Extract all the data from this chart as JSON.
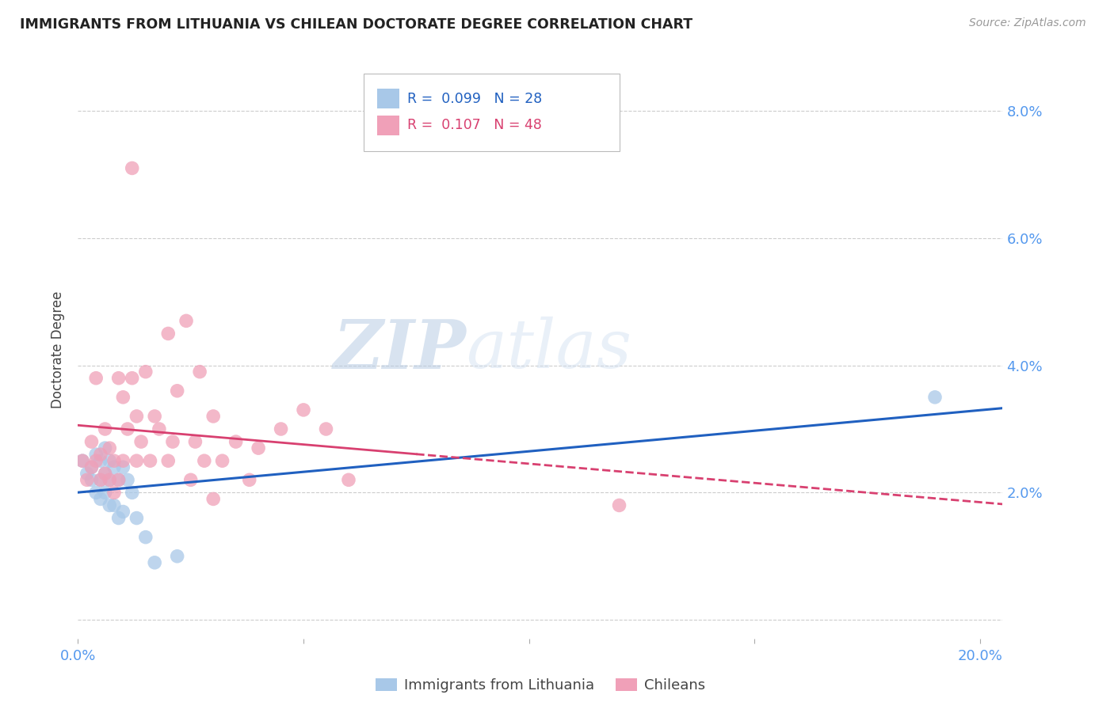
{
  "title": "IMMIGRANTS FROM LITHUANIA VS CHILEAN DOCTORATE DEGREE CORRELATION CHART",
  "source": "Source: ZipAtlas.com",
  "ylabel": "Doctorate Degree",
  "xlim": [
    0.0,
    0.205
  ],
  "ylim": [
    -0.003,
    0.088
  ],
  "x_ticks": [
    0.0,
    0.05,
    0.1,
    0.15,
    0.2
  ],
  "x_tick_labels": [
    "0.0%",
    "",
    "",
    "",
    "20.0%"
  ],
  "y_ticks": [
    0.0,
    0.02,
    0.04,
    0.06,
    0.08
  ],
  "y_tick_labels": [
    "",
    "2.0%",
    "4.0%",
    "6.0%",
    "8.0%"
  ],
  "blue_color": "#a8c8e8",
  "pink_color": "#f0a0b8",
  "blue_line_color": "#2060c0",
  "pink_line_color": "#d84070",
  "axis_label_color": "#5599ee",
  "watermark_zip": "ZIP",
  "watermark_atlas": "atlas",
  "blue_scatter_x": [
    0.001,
    0.002,
    0.003,
    0.003,
    0.004,
    0.004,
    0.005,
    0.005,
    0.005,
    0.006,
    0.006,
    0.006,
    0.007,
    0.007,
    0.007,
    0.008,
    0.008,
    0.009,
    0.009,
    0.01,
    0.01,
    0.011,
    0.012,
    0.013,
    0.015,
    0.017,
    0.022,
    0.19
  ],
  "blue_scatter_y": [
    0.025,
    0.023,
    0.024,
    0.022,
    0.026,
    0.02,
    0.025,
    0.022,
    0.019,
    0.027,
    0.023,
    0.02,
    0.025,
    0.022,
    0.018,
    0.024,
    0.018,
    0.022,
    0.016,
    0.024,
    0.017,
    0.022,
    0.02,
    0.016,
    0.013,
    0.009,
    0.01,
    0.035
  ],
  "pink_scatter_x": [
    0.001,
    0.002,
    0.003,
    0.003,
    0.004,
    0.004,
    0.005,
    0.005,
    0.006,
    0.006,
    0.007,
    0.007,
    0.008,
    0.008,
    0.009,
    0.009,
    0.01,
    0.01,
    0.011,
    0.012,
    0.013,
    0.013,
    0.014,
    0.015,
    0.016,
    0.017,
    0.018,
    0.02,
    0.021,
    0.022,
    0.024,
    0.025,
    0.026,
    0.027,
    0.028,
    0.03,
    0.032,
    0.035,
    0.038,
    0.04,
    0.045,
    0.05,
    0.055,
    0.06,
    0.012,
    0.02,
    0.03,
    0.12
  ],
  "pink_scatter_y": [
    0.025,
    0.022,
    0.028,
    0.024,
    0.025,
    0.038,
    0.026,
    0.022,
    0.03,
    0.023,
    0.027,
    0.022,
    0.025,
    0.02,
    0.022,
    0.038,
    0.025,
    0.035,
    0.03,
    0.038,
    0.032,
    0.025,
    0.028,
    0.039,
    0.025,
    0.032,
    0.03,
    0.025,
    0.028,
    0.036,
    0.047,
    0.022,
    0.028,
    0.039,
    0.025,
    0.032,
    0.025,
    0.028,
    0.022,
    0.027,
    0.03,
    0.033,
    0.03,
    0.022,
    0.071,
    0.045,
    0.019,
    0.018
  ]
}
